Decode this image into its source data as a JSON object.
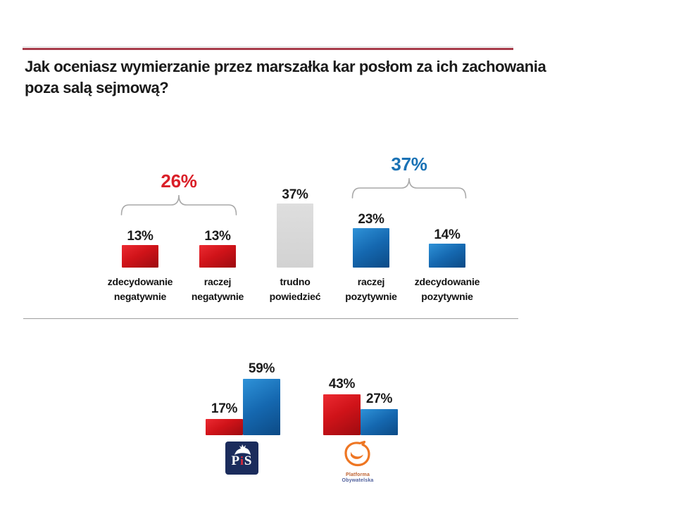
{
  "title": {
    "line1": "Jak oceniasz wymierzanie przez marszałka kar posłom za ich zachowania",
    "line2": "poza salą sejmową?"
  },
  "colors": {
    "red_bar": "#d01319",
    "blue_bar": "#1568b0",
    "gray_bar": "#d8d8d8",
    "red_accent": "#da1f28",
    "blue_accent": "#1a72b5",
    "top_rule": "#a63b49",
    "bracket": "#a9a9a9"
  },
  "chart_data": [
    {
      "type": "bar",
      "name": "opinion-distribution",
      "categories": [
        "zdecydowanie negatywnie",
        "raczej negatywnie",
        "trudno powiedzieć",
        "raczej pozytywnie",
        "zdecydowanie pozytywnie"
      ],
      "values": [
        13,
        13,
        37,
        23,
        14
      ],
      "data_labels": [
        "13%",
        "13%",
        "37%",
        "23%",
        "14%"
      ],
      "bar_colors": [
        "red",
        "red",
        "gray",
        "blue",
        "blue"
      ],
      "brackets": [
        {
          "label": "26%",
          "span": [
            0,
            1
          ],
          "color_key": "red_accent"
        },
        {
          "label": "37%",
          "span": [
            3,
            4
          ],
          "color_key": "blue_accent"
        }
      ],
      "ylim": [
        0,
        40
      ],
      "grid": false,
      "legend": false
    },
    {
      "type": "bar",
      "name": "party-electorates",
      "groups": [
        {
          "party": "PiS",
          "values": [
            17,
            59
          ],
          "data_labels": [
            "17%",
            "59%"
          ],
          "bar_colors": [
            "red",
            "blue"
          ]
        },
        {
          "party": "Platforma Obywatelska",
          "values": [
            43,
            27
          ],
          "data_labels": [
            "43%",
            "27%"
          ],
          "bar_colors": [
            "red",
            "blue"
          ]
        }
      ],
      "grid": false,
      "legend": false
    }
  ],
  "logos": {
    "pis": {
      "p": "P",
      "i": "i",
      "s": "S",
      "name": "PiS"
    },
    "po": {
      "line1": "Platforma",
      "line2": "Obywatelska",
      "name": "Platforma Obywatelska"
    }
  }
}
